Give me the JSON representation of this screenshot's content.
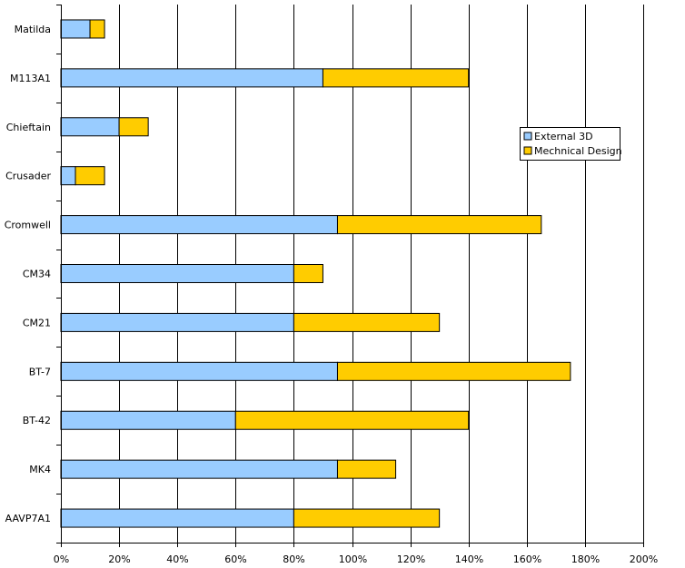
{
  "chart_data": {
    "type": "bar",
    "orientation": "horizontal",
    "stacked": true,
    "categories": [
      "Matilda",
      "M113A1",
      "Chieftain",
      "Crusader",
      "Cromwell",
      "CM34",
      "CM21",
      "BT-7",
      "BT-42",
      "MK4",
      "AAVP7A1"
    ],
    "series": [
      {
        "name": "External 3D",
        "color": "#99ccff",
        "values": [
          10,
          90,
          20,
          5,
          95,
          80,
          80,
          95,
          60,
          95,
          80
        ]
      },
      {
        "name": "Mechnical Design",
        "color": "#ffcc00",
        "values": [
          5,
          50,
          10,
          10,
          70,
          10,
          50,
          80,
          80,
          20,
          50
        ]
      }
    ],
    "x_ticks": [
      "0%",
      "20%",
      "40%",
      "60%",
      "80%",
      "100%",
      "120%",
      "140%",
      "160%",
      "180%",
      "200%"
    ],
    "xlim": [
      0,
      200
    ],
    "x_unit": "%",
    "title": "",
    "xlabel": "",
    "ylabel": "",
    "grid": "vertical",
    "legend_position": "right"
  }
}
